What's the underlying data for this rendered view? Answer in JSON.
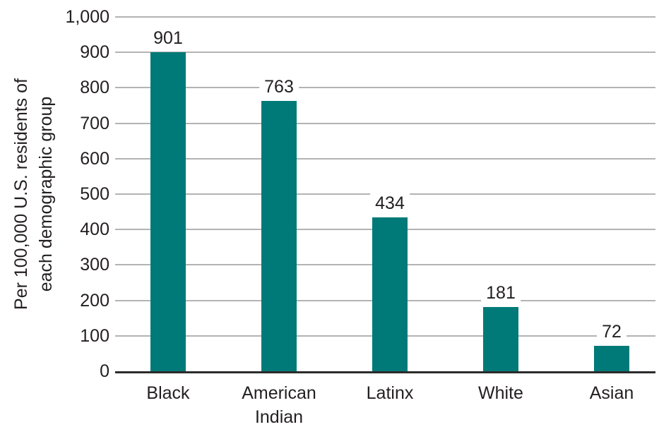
{
  "chart_data": {
    "type": "bar",
    "title": "",
    "xlabel": "",
    "ylabel": "Per 100,000 U.S. residents of\neach demographic group",
    "categories": [
      "Black",
      "American Indian",
      "Latinx",
      "White",
      "Asian"
    ],
    "values": [
      901,
      763,
      434,
      181,
      72
    ],
    "value_labels": [
      "901",
      "763",
      "434",
      "181",
      "72"
    ],
    "ylim": [
      0,
      1000
    ],
    "yticks": [
      0,
      100,
      200,
      300,
      400,
      500,
      600,
      700,
      800,
      900,
      1000
    ],
    "ytick_top_label": "1,000",
    "grid": true,
    "legend": false,
    "colors": {
      "bar": "#007A78",
      "gridline": "#B3B3B3",
      "axis_line": "#2B2B2B",
      "text": "#231F20",
      "background": "#FFFFFF"
    }
  }
}
